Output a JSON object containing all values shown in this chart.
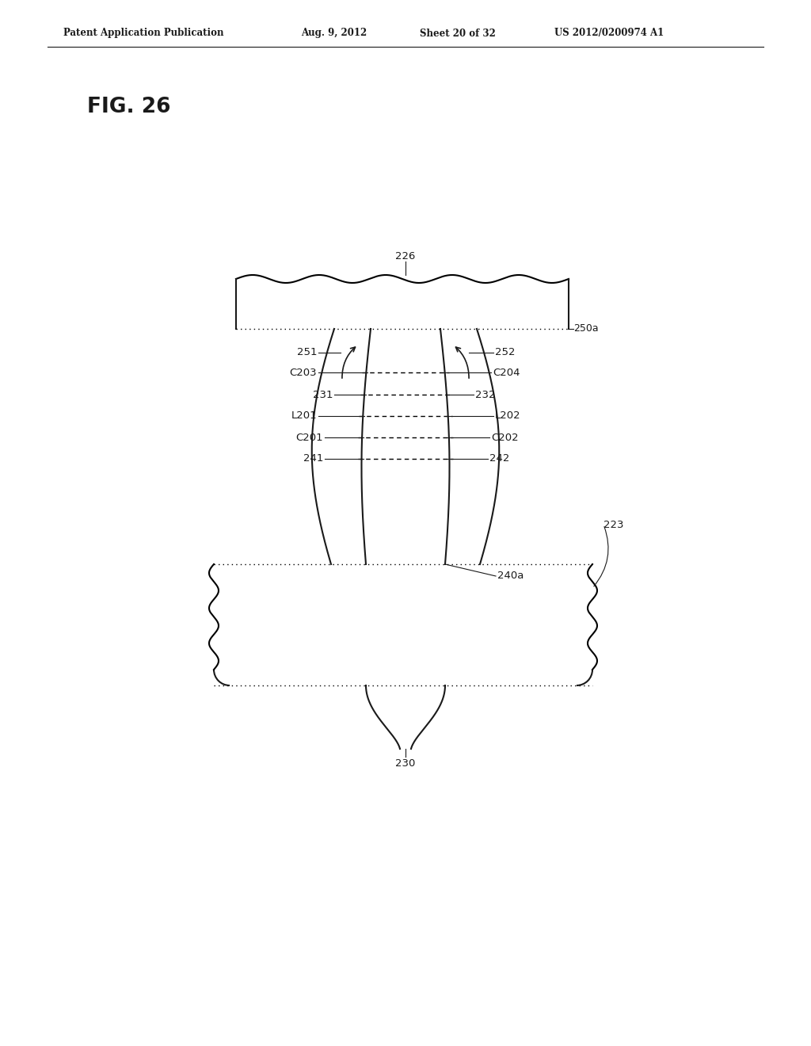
{
  "bg_color": "#ffffff",
  "header_text": "Patent Application Publication",
  "header_date": "Aug. 9, 2012",
  "header_sheet": "Sheet 20 of 32",
  "header_patent": "US 2012/0200974 A1",
  "fig_label": "FIG. 26",
  "lw": 1.5,
  "lw_thin": 1.0
}
